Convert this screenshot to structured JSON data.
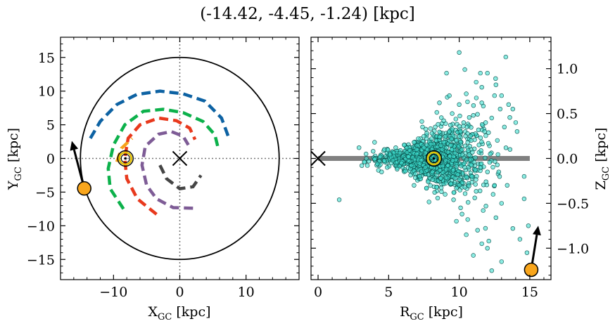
{
  "title": "(-14.42, -4.45, -1.24) [kpc]",
  "chart_data": [
    {
      "type": "line",
      "panel": "left",
      "xlabel_main": "X",
      "xlabel_sub": "GC",
      "xlabel_unit": " [kpc]",
      "ylabel_main": "Y",
      "ylabel_sub": "GC",
      "ylabel_unit": " [kpc]",
      "xlim": [
        -18,
        18
      ],
      "ylim": [
        -18,
        18
      ],
      "xticks": [
        -10,
        0,
        10
      ],
      "yticks": [
        -15,
        -10,
        -5,
        0,
        5,
        10,
        15
      ],
      "circle_radius": 15,
      "galactic_center": [
        0,
        0
      ],
      "sun": [
        -8.2,
        0
      ],
      "target": [
        -14.42,
        -4.45
      ],
      "arrow_to": [
        -16.3,
        2.6
      ],
      "arms": [
        {
          "color": "#0d62a3",
          "points": [
            [
              -13.5,
              3
            ],
            [
              -12,
              5.5
            ],
            [
              -9.5,
              8
            ],
            [
              -6.5,
              9.5
            ],
            [
              -3,
              10
            ],
            [
              0.5,
              9.6
            ],
            [
              3.8,
              8.5
            ],
            [
              6.3,
              6
            ],
            [
              7.5,
              2.8
            ]
          ]
        },
        {
          "color": "#0cb14b",
          "points": [
            [
              -8.5,
              -7.5
            ],
            [
              -10.5,
              -4.5
            ],
            [
              -10.8,
              -1.5
            ],
            [
              -10,
              2
            ],
            [
              -8.3,
              5
            ],
            [
              -5.5,
              7
            ],
            [
              -2.5,
              7.3
            ],
            [
              0.5,
              6.8
            ],
            [
              3.5,
              5.5
            ],
            [
              5.3,
              3.5
            ],
            [
              5.8,
              1.5
            ]
          ]
        },
        {
          "color": "#f7a21b",
          "points": [
            [
              -9.5,
              -0.5
            ],
            [
              -8.8,
              1.5
            ],
            [
              -7.2,
              3
            ]
          ]
        },
        {
          "color": "#e8391d",
          "points": [
            [
              -3.5,
              -8.3
            ],
            [
              -6.4,
              -6
            ],
            [
              -8,
              -3
            ],
            [
              -8.3,
              0
            ],
            [
              -7.8,
              3
            ],
            [
              -6,
              5
            ],
            [
              -3.2,
              6
            ],
            [
              -0.5,
              5.6
            ],
            [
              1.5,
              4.5
            ],
            [
              2.3,
              2.8
            ]
          ]
        },
        {
          "color": "#7e5c96",
          "points": [
            [
              2,
              -7.4
            ],
            [
              -1,
              -7.3
            ],
            [
              -3.5,
              -6
            ],
            [
              -5,
              -4
            ],
            [
              -5.7,
              -1
            ],
            [
              -5.2,
              1.8
            ],
            [
              -3.2,
              3.6
            ],
            [
              -1.3,
              4
            ],
            [
              0.5,
              3.3
            ],
            [
              1.3,
              2
            ]
          ]
        },
        {
          "color": "#454545",
          "points": [
            [
              -3,
              -1
            ],
            [
              -2,
              -3
            ],
            [
              0,
              -4.5
            ],
            [
              2,
              -4.2
            ],
            [
              3.2,
              -2.5
            ]
          ]
        }
      ]
    },
    {
      "type": "scatter",
      "panel": "right",
      "xlabel_main": "R",
      "xlabel_sub": "GC",
      "xlabel_unit": " [kpc]",
      "ylabel_main": "Z",
      "ylabel_sub": "GC",
      "ylabel_unit": " [kpc]",
      "xlim": [
        -0.5,
        16.5
      ],
      "ylim": [
        -1.35,
        1.35
      ],
      "xticks": [
        0,
        5,
        10,
        15
      ],
      "yticks": [
        -1.0,
        -0.5,
        0.0,
        0.5,
        1.0
      ],
      "ytick_labels": [
        "−1.0",
        "−0.5",
        "0.0",
        "0.5",
        "1.0"
      ],
      "disk_line": [
        [
          0,
          0
        ],
        [
          15,
          0
        ]
      ],
      "galactic_center": [
        0,
        0
      ],
      "sun": [
        8.2,
        0
      ],
      "target": [
        15.1,
        -1.24
      ],
      "arrow_to": [
        15.6,
        -0.75
      ],
      "point_color": "#40e0d0",
      "points": [
        [
          3.4,
          0.05
        ],
        [
          3.6,
          -0.03
        ],
        [
          3.9,
          0.08
        ],
        [
          4.2,
          -0.06
        ],
        [
          4.4,
          0.02
        ],
        [
          4.7,
          0.1
        ],
        [
          4.9,
          -0.1
        ],
        [
          5.1,
          0.04
        ],
        [
          5.3,
          -0.02
        ],
        [
          5.5,
          0.12
        ],
        [
          5.6,
          -0.12
        ],
        [
          5.8,
          0.06
        ],
        [
          5.9,
          -0.05
        ],
        [
          6.1,
          0.15
        ],
        [
          6.2,
          -0.14
        ],
        [
          6.4,
          0.02
        ],
        [
          6.5,
          0.09
        ],
        [
          6.6,
          -0.08
        ],
        [
          6.8,
          0.18
        ],
        [
          6.9,
          -0.17
        ],
        [
          7.0,
          0.05
        ],
        [
          7.1,
          0.22
        ],
        [
          7.2,
          -0.2
        ],
        [
          7.3,
          -0.02
        ],
        [
          7.5,
          0.12
        ],
        [
          7.6,
          -0.1
        ],
        [
          7.7,
          0.28
        ],
        [
          7.8,
          -0.26
        ],
        [
          7.9,
          0.04
        ],
        [
          8.0,
          0.16
        ],
        [
          8.1,
          -0.15
        ],
        [
          8.3,
          0.35
        ],
        [
          8.4,
          -0.32
        ],
        [
          8.5,
          0.08
        ],
        [
          8.6,
          0.24
        ],
        [
          8.7,
          -0.22
        ],
        [
          8.8,
          0.02
        ],
        [
          8.9,
          0.42
        ],
        [
          9.0,
          -0.4
        ],
        [
          9.1,
          0.12
        ],
        [
          9.2,
          -0.08
        ],
        [
          9.3,
          0.3
        ],
        [
          9.4,
          -0.28
        ],
        [
          9.5,
          0.5
        ],
        [
          9.6,
          -0.46
        ],
        [
          9.7,
          0.06
        ],
        [
          9.8,
          0.2
        ],
        [
          9.9,
          -0.18
        ],
        [
          10.0,
          0.6
        ],
        [
          10.1,
          -0.55
        ],
        [
          10.2,
          0.1
        ],
        [
          10.3,
          0.36
        ],
        [
          10.4,
          -0.32
        ],
        [
          10.5,
          0.72
        ],
        [
          10.6,
          -0.68
        ],
        [
          10.7,
          0.04
        ],
        [
          10.8,
          0.25
        ],
        [
          10.9,
          -0.2
        ],
        [
          11.0,
          0.48
        ],
        [
          11.1,
          -0.44
        ],
        [
          11.2,
          0.85
        ],
        [
          11.3,
          -0.8
        ],
        [
          11.4,
          0.15
        ],
        [
          11.5,
          -0.1
        ],
        [
          11.6,
          0.62
        ],
        [
          11.7,
          -0.58
        ],
        [
          11.8,
          0.3
        ],
        [
          11.9,
          -0.26
        ],
        [
          12.0,
          0.95
        ],
        [
          12.1,
          -0.92
        ],
        [
          12.2,
          0.05
        ],
        [
          12.3,
          0.45
        ],
        [
          12.4,
          -0.4
        ],
        [
          12.5,
          0.7
        ],
        [
          12.6,
          -0.66
        ],
        [
          12.7,
          0.2
        ],
        [
          12.8,
          -0.15
        ],
        [
          12.9,
          0.55
        ],
        [
          13.0,
          -0.5
        ],
        [
          13.2,
          0.35
        ],
        [
          13.3,
          1.13
        ],
        [
          13.4,
          -0.3
        ],
        [
          13.6,
          0.1
        ],
        [
          13.8,
          -0.78
        ],
        [
          14.0,
          0.4
        ],
        [
          14.3,
          -0.9
        ],
        [
          14.6,
          -0.45
        ],
        [
          14.8,
          -1.05
        ],
        [
          14.9,
          -0.75
        ],
        [
          15.0,
          -1.2
        ],
        [
          9.1,
          0.95
        ],
        [
          10.0,
          1.18
        ],
        [
          11.5,
          0.95
        ],
        [
          12.3,
          -1.25
        ],
        [
          13.0,
          -1.15
        ],
        [
          12.0,
          -1.0
        ],
        [
          10.5,
          -0.85
        ],
        [
          8.6,
          0.62
        ],
        [
          9.3,
          0.7
        ],
        [
          10.4,
          0.99
        ],
        [
          12.6,
          0.82
        ],
        [
          13.5,
          0.6
        ],
        [
          13.8,
          0.55
        ],
        [
          1.5,
          -0.46
        ],
        [
          2.9,
          0.12
        ],
        [
          3.1,
          -0.08
        ],
        [
          4.0,
          0.18
        ],
        [
          4.5,
          -0.15
        ],
        [
          14.1,
          0.3
        ],
        [
          14.6,
          -0.2
        ],
        [
          13.0,
          0.7
        ],
        [
          11.0,
          -1.08
        ],
        [
          11.6,
          -0.95
        ],
        [
          7.4,
          0.35
        ],
        [
          6.8,
          -0.3
        ],
        [
          9.8,
          -0.7
        ],
        [
          10.2,
          -0.62
        ],
        [
          12.5,
          -0.3
        ]
      ]
    }
  ]
}
